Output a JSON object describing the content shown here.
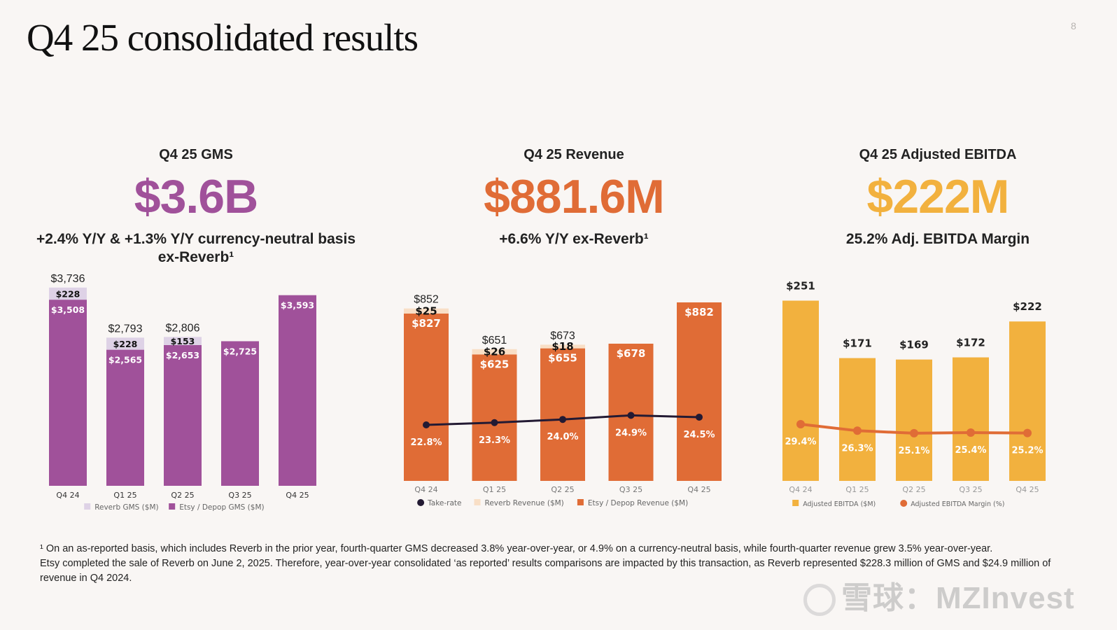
{
  "page": {
    "title": "Q4 25 consolidated results",
    "page_number": "8"
  },
  "kpis": {
    "gms": {
      "label": "Q4 25 GMS",
      "value": "$3.6B",
      "sub_line1": "+2.4% Y/Y & +1.3% Y/Y currency-neutral basis",
      "sub_line2": "ex-Reverb¹",
      "color": "#a0519a"
    },
    "revenue": {
      "label": "Q4 25 Revenue",
      "value": "$881.6M",
      "sub_line1": "+6.6% Y/Y ex-Reverb¹",
      "color": "#e06c36"
    },
    "ebitda": {
      "label": "Q4 25 Adjusted EBITDA",
      "value": "$222M",
      "sub_line1": "25.2% Adj. EBITDA Margin",
      "color": "#f2b13e"
    }
  },
  "chart_data": [
    {
      "id": "gms",
      "type": "bar",
      "stacked": true,
      "categories": [
        "Q4 24",
        "Q1 25",
        "Q2 25",
        "Q3 25",
        "Q4 25"
      ],
      "series": [
        {
          "name": "Etsy / Depop GMS ($M)",
          "values": [
            3508,
            2565,
            2653,
            2725,
            3593
          ],
          "labels": [
            "$3,508",
            "$2,565",
            "$2,653",
            "$2,725",
            "$3,593"
          ],
          "color": "#a0519a"
        },
        {
          "name": "Reverb GMS ($M)",
          "values": [
            228,
            228,
            153,
            0,
            0
          ],
          "labels": [
            "$228",
            "$228",
            "$153",
            "",
            ""
          ],
          "color": "#ded2e6"
        }
      ],
      "totals": [
        "$3,736",
        "$2,793",
        "$2,806",
        "",
        ""
      ],
      "legend": [
        {
          "label": "Reverb GMS ($M)",
          "color": "#ded2e6",
          "marker": "square"
        },
        {
          "label": "Etsy / Depop GMS ($M)",
          "color": "#a0519a",
          "marker": "square"
        }
      ],
      "legend_position": "bottom",
      "ylim": [
        0,
        3800
      ],
      "grid": false
    },
    {
      "id": "revenue",
      "type": "bar",
      "stacked": true,
      "categories": [
        "Q4 24",
        "Q1 25",
        "Q2 25",
        "Q3 25",
        "Q4 25"
      ],
      "series": [
        {
          "name": "Etsy / Depop Revenue ($M)",
          "values": [
            827,
            625,
            655,
            678,
            882
          ],
          "labels": [
            "$827",
            "$625",
            "$655",
            "$678",
            "$882"
          ],
          "color": "#e06c36"
        },
        {
          "name": "Reverb Revenue ($M)",
          "values": [
            25,
            26,
            18,
            0,
            0
          ],
          "labels": [
            "$25",
            "$26",
            "$18",
            "",
            ""
          ],
          "color": "#f9dfc6"
        }
      ],
      "totals": [
        "$852",
        "$651",
        "$673",
        "",
        ""
      ],
      "line": {
        "name": "Take-rate",
        "values": [
          22.8,
          23.3,
          24.0,
          24.9,
          24.5
        ],
        "labels": [
          "22.8%",
          "23.3%",
          "24.0%",
          "24.9%",
          "24.5%"
        ],
        "color": "#231a33"
      },
      "legend": [
        {
          "label": "Take-rate",
          "color": "#231a33",
          "marker": "circle"
        },
        {
          "label": "Reverb Revenue ($M)",
          "color": "#f9dfc6",
          "marker": "square"
        },
        {
          "label": "Etsy / Depop Revenue ($M)",
          "color": "#e06c36",
          "marker": "square"
        }
      ],
      "legend_position": "bottom",
      "ylim": [
        0,
        920
      ],
      "grid": false
    },
    {
      "id": "ebitda",
      "type": "bar",
      "stacked": false,
      "categories": [
        "Q4 24",
        "Q1 25",
        "Q2 25",
        "Q3 25",
        "Q4 25"
      ],
      "series": [
        {
          "name": "Adjusted EBITDA ($M)",
          "values": [
            251,
            171,
            169,
            172,
            222
          ],
          "labels": [
            "$251",
            "$171",
            "$169",
            "$172",
            "$222"
          ],
          "color": "#f2b13e"
        }
      ],
      "line": {
        "name": "Adjusted EBITDA Margin (%)",
        "values": [
          29.4,
          26.3,
          25.1,
          25.4,
          25.2
        ],
        "labels": [
          "29.4%",
          "26.3%",
          "25.1%",
          "25.4%",
          "25.2%"
        ],
        "color": "#e06c36"
      },
      "legend": [
        {
          "label": "Adjusted EBITDA ($M)",
          "color": "#f2b13e",
          "marker": "square"
        },
        {
          "label": "Adjusted EBITDA Margin (%)",
          "color": "#e06c36",
          "marker": "circle"
        }
      ],
      "legend_position": "bottom",
      "ylim": [
        0,
        270
      ],
      "grid": false
    }
  ],
  "footnote": {
    "line1": "¹ On an as-reported basis, which includes Reverb in the prior year, fourth-quarter GMS decreased 3.8% year-over-year, or 4.9% on a currency-neutral basis, while fourth-quarter revenue grew 3.5% year-over-year.",
    "line2": "Etsy completed the sale of Reverb on June 2, 2025. Therefore, year-over-year consolidated ‘as reported’ results comparisons are impacted by this transaction, as Reverb represented $228.3 million of GMS and $24.9 million of revenue in Q4 2024."
  },
  "watermark": {
    "text": "雪球：MZInvest"
  }
}
